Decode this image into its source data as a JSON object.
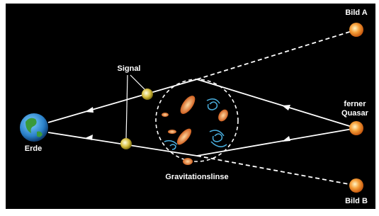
{
  "labels": {
    "image_a": "Bild A",
    "signal": "Signal",
    "quasar": [
      "ferner",
      "Quasar"
    ],
    "earth": "Erde",
    "lens": "Gravitationslinse",
    "image_b": "Bild B"
  }
}
